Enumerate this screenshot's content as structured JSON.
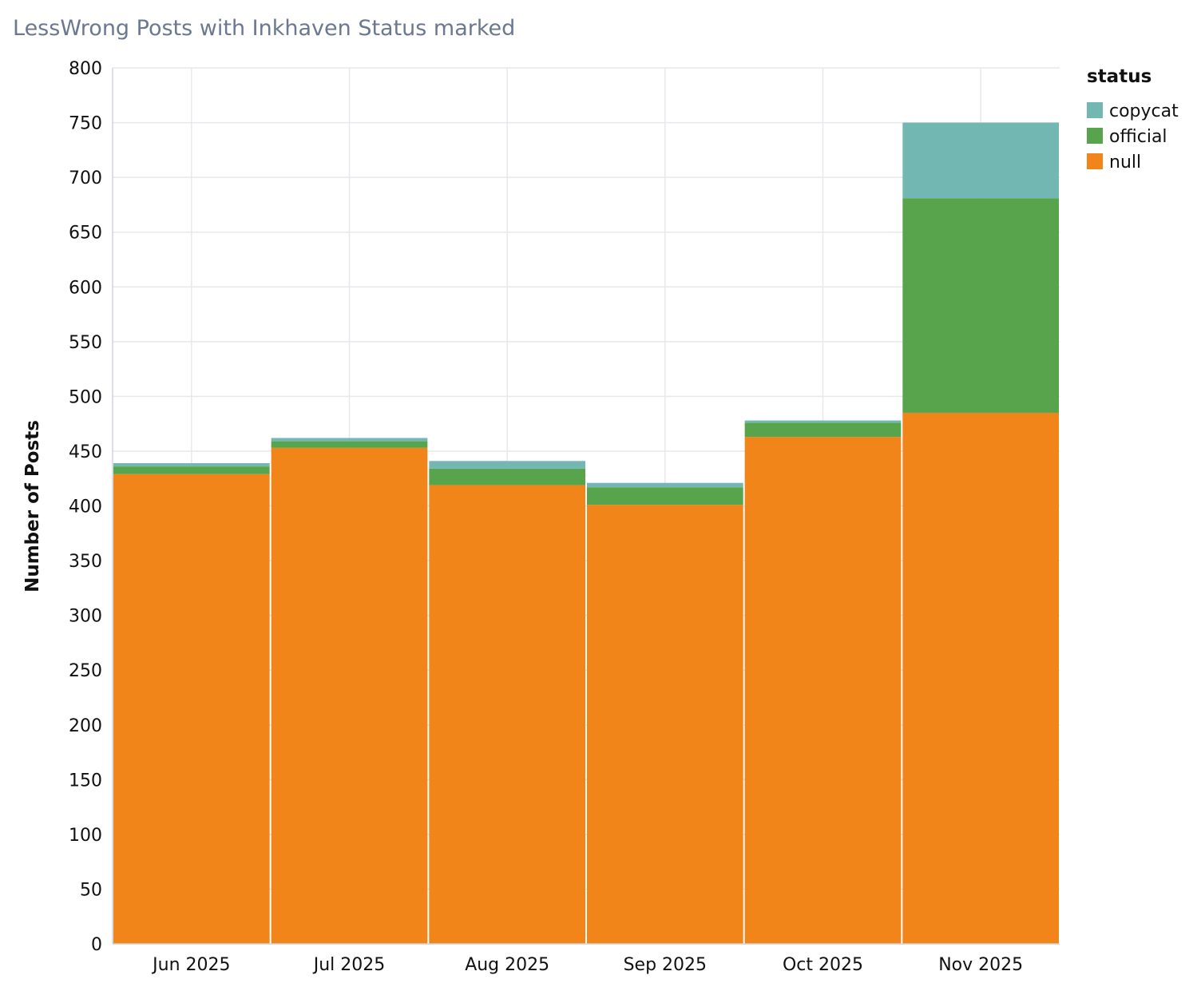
{
  "chart_data": {
    "type": "bar",
    "stacked": true,
    "title": "LessWrong Posts with Inkhaven Status marked",
    "xlabel": "",
    "ylabel": "Number of Posts",
    "ylim": [
      0,
      800
    ],
    "yticks": [
      0,
      50,
      100,
      150,
      200,
      250,
      300,
      350,
      400,
      450,
      500,
      550,
      600,
      650,
      700,
      750,
      800
    ],
    "categories": [
      "Jun 2025",
      "Jul 2025",
      "Aug 2025",
      "Sep 2025",
      "Oct 2025",
      "Nov 2025"
    ],
    "grid": true,
    "legend": {
      "title": "status",
      "placement": "top-right",
      "order": [
        "copycat",
        "official",
        "null"
      ]
    },
    "series": [
      {
        "name": "null",
        "color": "#f28519",
        "values": [
          429,
          453,
          419,
          401,
          463,
          485
        ]
      },
      {
        "name": "official",
        "color": "#57a44c",
        "values": [
          7,
          6,
          15,
          16,
          13,
          196
        ]
      },
      {
        "name": "copycat",
        "color": "#72b7b2",
        "values": [
          3,
          3,
          7,
          4,
          2,
          69
        ]
      }
    ]
  }
}
